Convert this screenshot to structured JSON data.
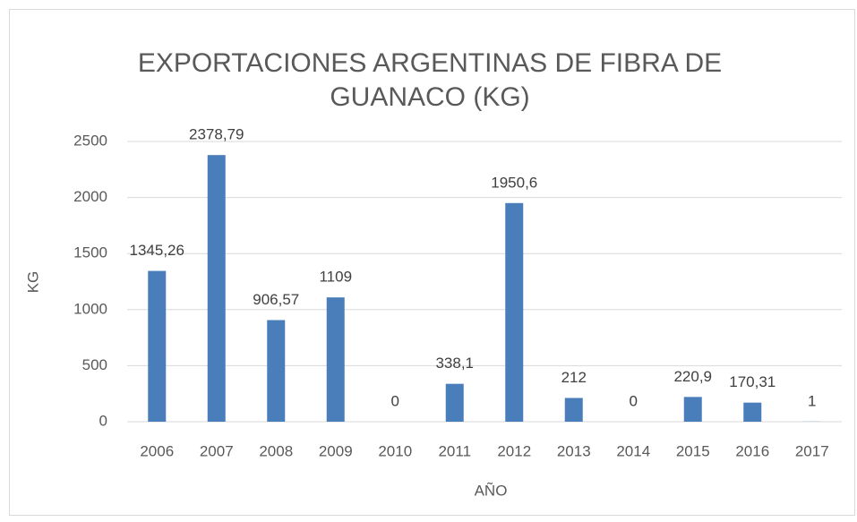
{
  "chart_data": {
    "type": "bar",
    "title": "EXPORTACIONES ARGENTINAS DE FIBRA DE GUANACO (KG)",
    "x_label": "AÑO",
    "y_label": "KG",
    "categories": [
      "2006",
      "2007",
      "2008",
      "2009",
      "2010",
      "2011",
      "2012",
      "2013",
      "2014",
      "2015",
      "2016",
      "2017"
    ],
    "values": [
      1345.26,
      2378.79,
      906.57,
      1109,
      0,
      338.1,
      1950.6,
      212,
      0,
      220.9,
      170.31,
      1
    ],
    "value_labels": [
      "1345,26",
      "2378,79",
      "906,57",
      "1109",
      "0",
      "338,1",
      "1950,6",
      "212",
      "0",
      "220,9",
      "170,31",
      "1"
    ],
    "color": "#4a7ebb",
    "ylim": [
      0,
      2500
    ],
    "yticks": [
      0,
      500,
      1000,
      1500,
      2000,
      2500
    ],
    "grid": true
  }
}
